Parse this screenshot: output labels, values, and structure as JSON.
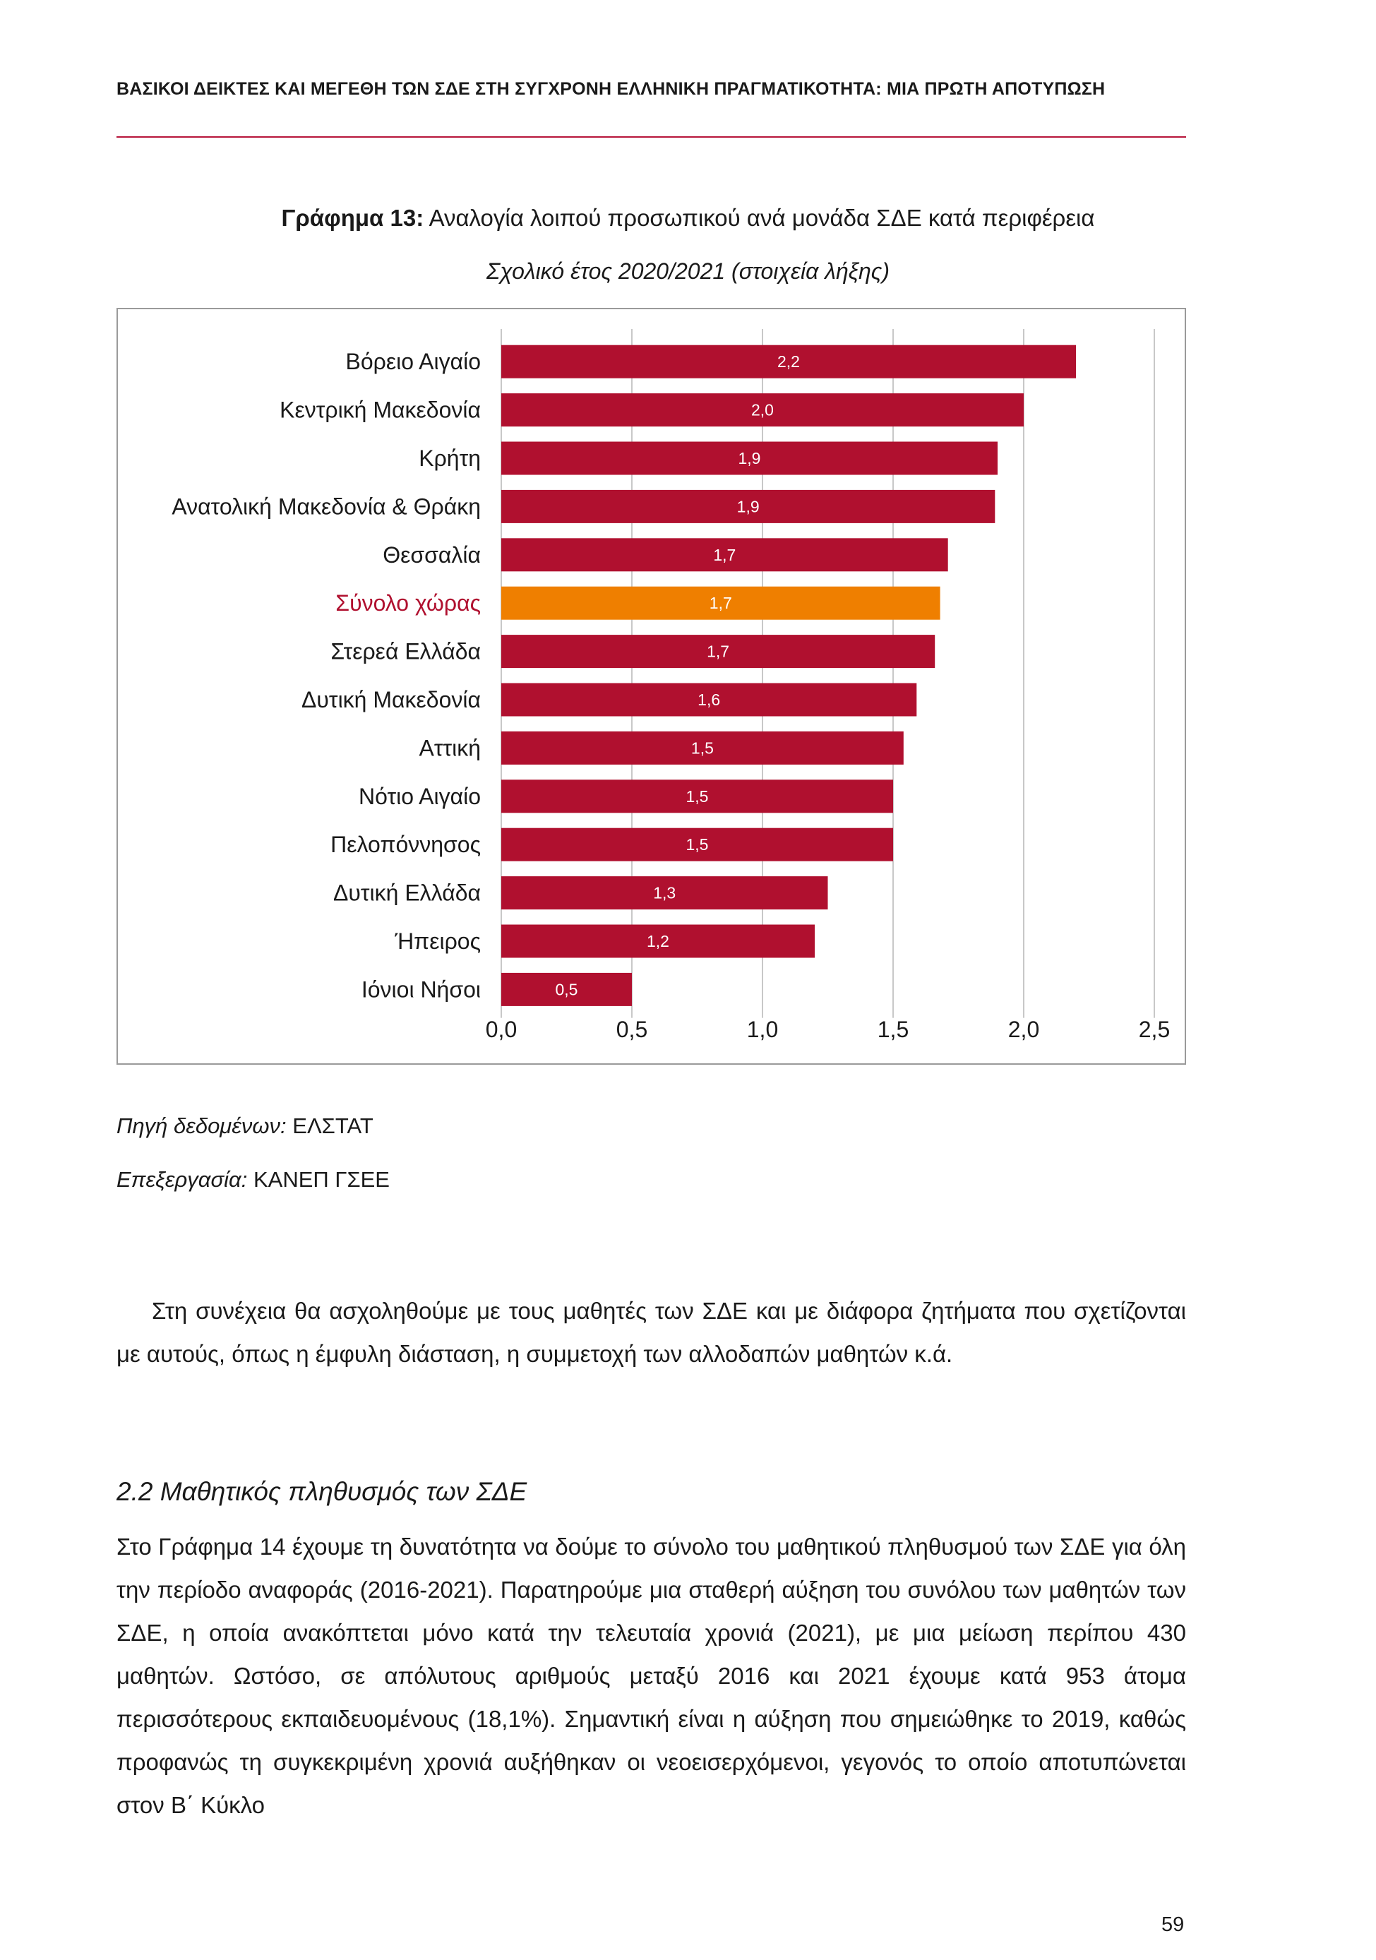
{
  "header": {
    "running_title": "ΒΑΣΙΚΟΙ ΔΕΙΚΤΕΣ ΚΑΙ ΜΕΓΕΘΗ ΤΩΝ ΣΔΕ ΣΤΗ ΣΥΓΧΡΟΝΗ ΕΛΛΗΝΙΚΗ ΠΡΑΓΜΑΤΙΚΟΤΗΤΑ: ΜΙΑ ΠΡΩΤΗ ΑΠΟΤΥΠΩΣΗ",
    "rule_color": "#b7153a"
  },
  "figure": {
    "label": "Γράφημα 13:",
    "title": "Αναλογία λοιπού προσωπικού ανά μονάδα ΣΔΕ κατά περιφέρεια",
    "subtitle": "Σχολικό έτος 2020/2021 (στοιχεία λήξης)"
  },
  "chart_data": {
    "type": "bar",
    "orientation": "horizontal",
    "title": "Αναλογία λοιπού προσωπικού ανά μονάδα ΣΔΕ κατά περιφέρεια",
    "subtitle": "Σχολικό έτος 2020/2021 (στοιχεία λήξης)",
    "categories": [
      "Βόρειο Αιγαίο",
      "Κεντρική Μακεδονία",
      "Κρήτη",
      "Ανατολική Μακεδονία & Θράκη",
      "Θεσσαλία",
      "Σύνολο χώρας",
      "Στερεά Ελλάδα",
      "Δυτική Μακεδονία",
      "Αττική",
      "Νότιο Αιγαίο",
      "Πελοπόννησος",
      "Δυτική Ελλάδα",
      "Ήπειρος",
      "Ιόνιοι Νήσοι"
    ],
    "values": [
      2.2,
      2.0,
      1.9,
      1.89,
      1.71,
      1.68,
      1.66,
      1.59,
      1.54,
      1.5,
      1.5,
      1.25,
      1.2,
      0.5
    ],
    "value_labels": [
      "2,2",
      "2,0",
      "1,9",
      "1,9",
      "1,7",
      "1,7",
      "1,7",
      "1,6",
      "1,5",
      "1,5",
      "1,5",
      "1,3",
      "1,2",
      "0,5"
    ],
    "highlight_category": "Σύνολο χώρας",
    "bar_color": "#b0102f",
    "highlight_color": "#ef7f00",
    "highlight_label_color": "#b0102f",
    "x_ticks": [
      0,
      0.5,
      1.0,
      1.5,
      2.0,
      2.5
    ],
    "x_tick_labels": [
      "0,0",
      "0,5",
      "1,0",
      "1,5",
      "2,0",
      "2,5"
    ],
    "xlim": [
      0,
      2.5
    ],
    "xlabel": "",
    "ylabel": "",
    "grid": true
  },
  "notes": {
    "source_label": "Πηγή δεδομένων:",
    "source_value": " ΕΛΣΤΑΤ",
    "processing_label": "Επεξεργασία:",
    "processing_value": " ΚΑΝΕΠ ΓΣΕΕ"
  },
  "body": {
    "intro_paragraph": "Στη συνέχεια θα ασχοληθούμε με τους μαθητές των ΣΔΕ και με διάφορα ζητήματα που σχετίζονται με αυτούς, όπως η έμφυλη διάσταση, η συμμετοχή των αλλοδαπών μαθητών κ.ά.",
    "section_heading": "2.2  Μαθητικός πληθυσμός των ΣΔΕ",
    "section_paragraph": "Στο Γράφημα 14 έχουμε τη δυνατότητα να δούμε το σύνολο του μαθητικού πληθυσμού των ΣΔΕ για όλη την περίοδο αναφοράς (2016-2021). Παρατηρούμε μια σταθερή αύξηση του συνόλου των μαθητών των ΣΔΕ, η οποία ανακόπτεται μόνο κατά την τελευταία χρονιά (2021), με μια μείωση περίπου 430 μαθητών. Ωστόσο, σε απόλυτους αριθμούς μεταξύ 2016 και 2021 έχουμε κατά 953 άτομα περισσότερους εκπαιδευομένους (18,1%). Σημαντική είναι η αύξηση που σημειώθηκε το 2019, καθώς προφανώς τη συγκεκριμένη χρονιά αυξήθηκαν οι νεοεισερχόμενοι, γεγονός το οποίο αποτυπώνεται στον Β΄ Κύκλο"
  },
  "page_number": "59"
}
